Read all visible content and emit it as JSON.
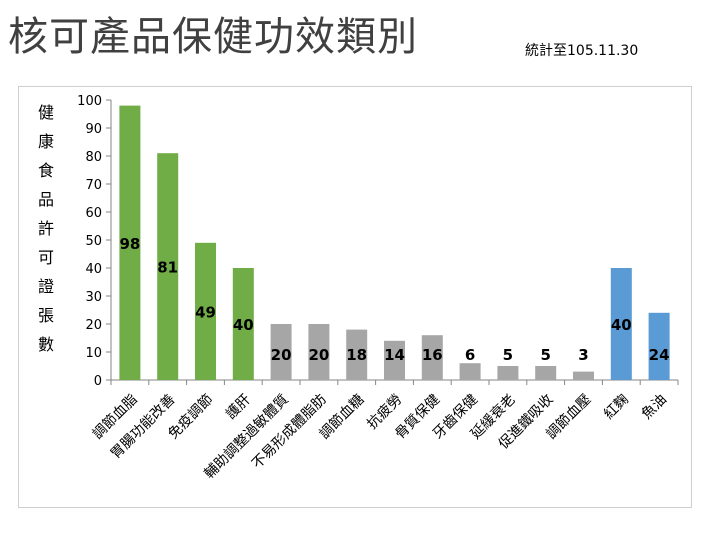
{
  "header": {
    "title": "核可產品保健功效類別",
    "note": "統計至105.11.30"
  },
  "chart_data": {
    "type": "bar",
    "ylabel": "健康食品許可證張數",
    "ylim": [
      0,
      100
    ],
    "yticks": [
      0,
      10,
      20,
      30,
      40,
      50,
      60,
      70,
      80,
      90,
      100
    ],
    "categories": [
      "調節血脂",
      "胃腸功能改善",
      "免疫調節",
      "護肝",
      "輔助調整過敏體質",
      "不易形成體脂肪",
      "調節血糖",
      "抗疲勞",
      "骨質保健",
      "牙齒保健",
      "延緩衰老",
      "促進鐵吸收",
      "調節血壓",
      "紅麴",
      "魚油"
    ],
    "values": [
      98,
      81,
      49,
      40,
      20,
      20,
      18,
      14,
      16,
      6,
      5,
      5,
      3,
      40,
      24
    ],
    "colors": [
      "#70ad47",
      "#70ad47",
      "#70ad47",
      "#70ad47",
      "#a6a6a6",
      "#a6a6a6",
      "#a6a6a6",
      "#a6a6a6",
      "#a6a6a6",
      "#a6a6a6",
      "#a6a6a6",
      "#a6a6a6",
      "#a6a6a6",
      "#5b9bd5",
      "#5b9bd5"
    ],
    "grid": false,
    "legend": "none"
  }
}
